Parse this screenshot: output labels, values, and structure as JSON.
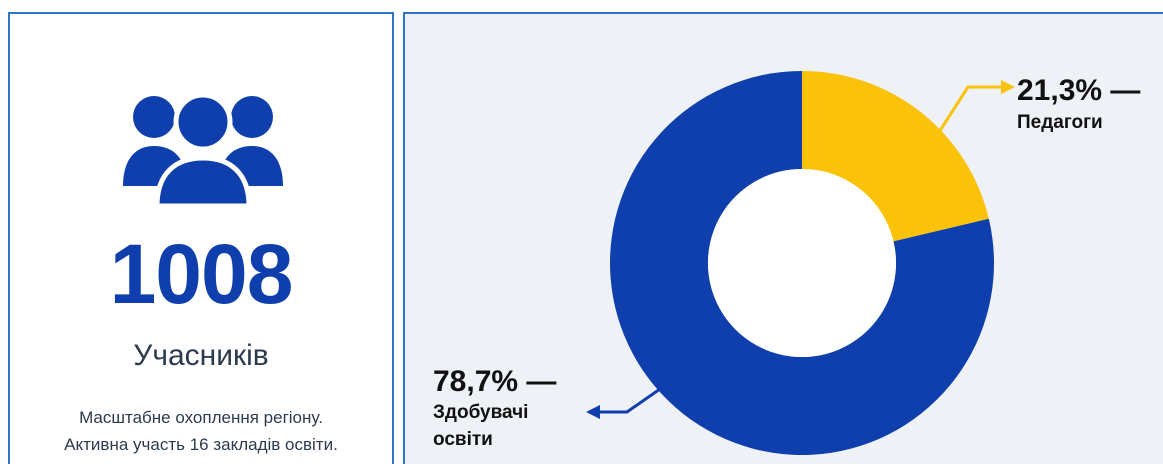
{
  "stats": {
    "value": "1008",
    "label": "Учасників",
    "desc_line1": "Масштабне охоплення регіону.",
    "desc_line2": "Активна участь 16 закладів освіти.",
    "icon": "people-group-icon"
  },
  "colors": {
    "accent_blue": "#0f3fac",
    "border_blue": "#2f74c8",
    "yellow": "#fbc20a",
    "panel_bg": "#eef1f5"
  },
  "chart_data": {
    "type": "pie",
    "donut": true,
    "title": "",
    "slices": [
      {
        "label_pct": "21,3% —",
        "label_name": "Педагоги",
        "value": 21.3,
        "color": "#fbc20a"
      },
      {
        "label_pct": "78,7% —",
        "label_name_line1": "Здобувачі",
        "label_name_line2": "освіти",
        "value": 78.7,
        "color": "#0f3fac"
      }
    ]
  }
}
